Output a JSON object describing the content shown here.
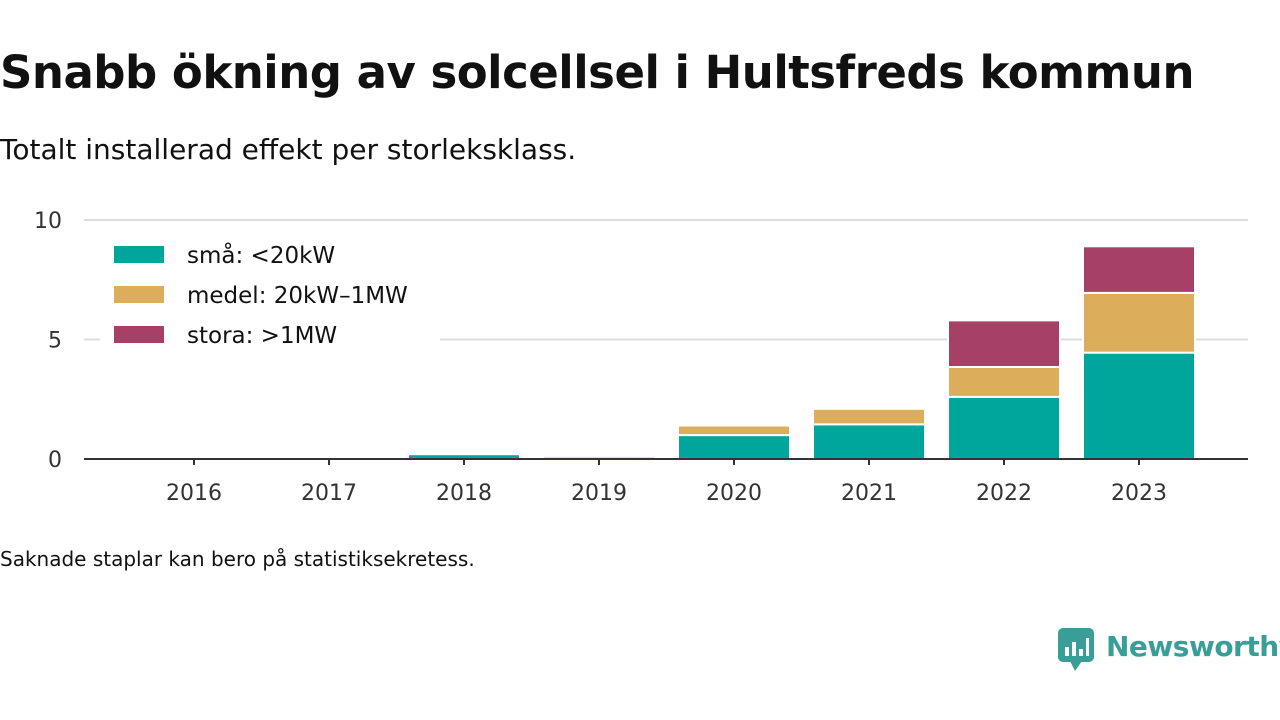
{
  "title": "Snabb ökning av solcellsel i Hultsfreds kommun",
  "subtitle": "Totalt installerad effekt per storleksklass.",
  "footnote": "Saknade staplar kan bero på statistiksekretess.",
  "brand": {
    "name": "Newsworthy",
    "icon": "newsworthy-logo-icon",
    "color": "#3a9e98"
  },
  "chart_data": {
    "type": "bar",
    "stacked": true,
    "categories": [
      "2016",
      "2017",
      "2018",
      "2019",
      "2020",
      "2021",
      "2022",
      "2023"
    ],
    "series": [
      {
        "name": "små: <20kW",
        "color": "#00a59b",
        "values": [
          0,
          0,
          0.2,
          0,
          1.0,
          1.45,
          2.6,
          4.45
        ]
      },
      {
        "name": "medel: 20kW–1MW",
        "color": "#dcad5a",
        "values": [
          0,
          0,
          0,
          0.1,
          0.4,
          0.65,
          1.25,
          2.5
        ]
      },
      {
        "name": "stora: >1MW",
        "color": "#a64066",
        "values": [
          0,
          0,
          0,
          0,
          0,
          0,
          1.95,
          1.95
        ]
      }
    ],
    "ylim": [
      0,
      10
    ],
    "yticks": [
      0,
      5,
      10
    ],
    "grid": true,
    "legend_position": "top-left"
  }
}
